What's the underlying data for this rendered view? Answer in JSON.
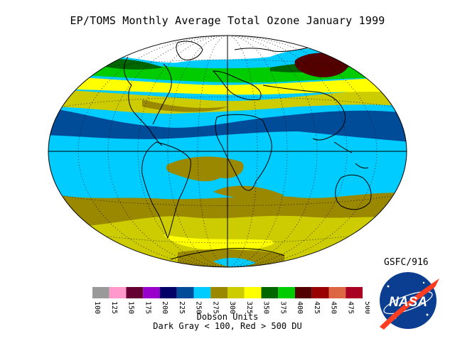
{
  "header": {
    "title": "EP/TOMS Monthly Average Total Ozone January 1999"
  },
  "credit": "GSFC/916",
  "legend": {
    "unit_label": "Dobson Units",
    "range_note": "Dark Gray < 100, Red > 500 DU",
    "ticks": [
      "100",
      "125",
      "150",
      "175",
      "200",
      "225",
      "250",
      "275",
      "300",
      "325",
      "350",
      "375",
      "400",
      "425",
      "450",
      "475",
      "500"
    ],
    "colors": [
      "#999999",
      "#ff99cc",
      "#660033",
      "#9900cc",
      "#000066",
      "#004c99",
      "#00ccff",
      "#998800",
      "#cccc00",
      "#ffff00",
      "#006600",
      "#00cc00",
      "#550000",
      "#990000",
      "#dd6644",
      "#aa0022"
    ]
  },
  "map": {
    "projection": "Hammer equal-area, global",
    "background_color": "#00ccff",
    "no_data_region": "north polar night (white)",
    "bands": [
      {
        "name": "north-high-latitude-green",
        "color": "#00cc00"
      },
      {
        "name": "north-yellow",
        "color": "#ffff00"
      },
      {
        "name": "north-olive",
        "color": "#cccc00"
      },
      {
        "name": "equatorial-dark-blue",
        "color": "#004c99"
      },
      {
        "name": "southern-olive",
        "color": "#998800"
      },
      {
        "name": "southern-yellow-green",
        "color": "#cccc00"
      },
      {
        "name": "siberian-maximum",
        "color": "#550000"
      }
    ]
  },
  "logo": {
    "text": "NASA"
  }
}
